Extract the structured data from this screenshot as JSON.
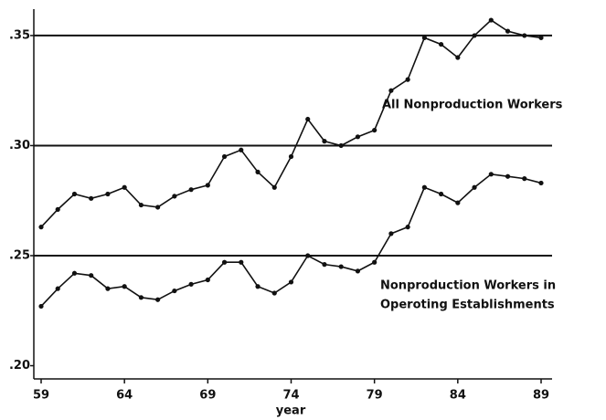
{
  "chart_data": {
    "type": "line",
    "x_label": "year",
    "x": [
      59,
      60,
      61,
      62,
      63,
      64,
      65,
      66,
      67,
      68,
      69,
      70,
      71,
      72,
      73,
      74,
      75,
      76,
      77,
      78,
      79,
      80,
      81,
      82,
      83,
      84,
      85,
      86,
      87,
      88,
      89
    ],
    "series": [
      {
        "color": "#111111",
        "values": [
          0.263,
          0.271,
          0.278,
          0.276,
          0.278,
          0.281,
          0.273,
          0.272,
          0.277,
          0.28,
          0.282,
          0.295,
          0.298,
          0.288,
          0.281,
          0.295,
          0.312,
          0.302,
          0.3,
          0.304,
          0.307,
          0.325,
          0.33,
          0.349,
          0.346,
          0.34,
          0.35,
          0.357,
          0.352,
          0.35,
          0.349
        ]
      },
      {
        "color": "#111111",
        "values": [
          0.227,
          0.235,
          0.242,
          0.241,
          0.235,
          0.236,
          0.231,
          0.23,
          0.234,
          0.237,
          0.239,
          0.247,
          0.247,
          0.236,
          0.233,
          0.238,
          0.25,
          0.246,
          0.245,
          0.243,
          0.247,
          0.26,
          0.263,
          0.281,
          0.278,
          0.274,
          0.281,
          0.287,
          0.286,
          0.285,
          0.283
        ]
      }
    ],
    "annotations": [
      [
        "All Nonproduction Workers"
      ],
      [
        "Nonproduction Workers in",
        "Operoting Establishments"
      ]
    ],
    "xlim": [
      59,
      89
    ],
    "xticks": [
      59,
      64,
      69,
      74,
      79,
      84,
      89
    ],
    "ylim": [
      0.194,
      0.362
    ],
    "yticks": [
      {
        "value": 0.2,
        "label": ".20"
      },
      {
        "value": 0.25,
        "label": ".25"
      },
      {
        "value": 0.3,
        "label": ".30"
      },
      {
        "value": 0.35,
        "label": ".35"
      }
    ],
    "grid": true
  }
}
